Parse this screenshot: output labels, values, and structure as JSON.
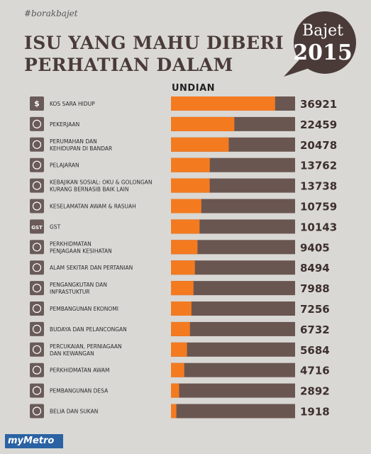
{
  "header": {
    "hashtag": "#borakbajet",
    "title_line1": "ISU YANG MAHU DIBERI",
    "title_line2": "PERHATIAN DALAM",
    "bubble_word": "Bajet",
    "bubble_year": "2015"
  },
  "colors": {
    "accent": "#f47a20",
    "bar_track": "#6a5651",
    "icon_bg": "#6a5b58",
    "title": "#4a3b38",
    "background": "#d9d8d5",
    "logo": "#2a62a3"
  },
  "chart_data": {
    "type": "bar",
    "orientation": "horizontal",
    "title": "ISU YANG MAHU DIBERI PERHATIAN DALAM Bajet 2015",
    "value_label": "UNDIAN",
    "xlim": [
      0,
      44000
    ],
    "categories": [
      "KOS SARA HIDUP",
      "PEKERJAAN",
      "PERUMAHAN DAN KEHIDUPAN DI BANDAR",
      "PELAJARAN",
      "KEBAJIKAN SOSIAL: OKU & GOLONGAN KURANG BERNASIB BAIK LAIN",
      "KESELAMATAN AWAM & RASUAH",
      "GST",
      "PERKHIDMATAN PENJAGAAN KESIHATAN",
      "ALAM SEKITAR DAN PERTANIAN",
      "PENGANGKUTAN DAN INFRASTUKTUR",
      "PEMBANGUNAN EKONOMI",
      "BUDAYA DAN PELANCONGAN",
      "PERCUKAIAN, PERNIAGAAN DAN KEWANGAN",
      "PERKHIDMATAN AWAM",
      "PEMBANGUNAN DESA",
      "BELIA DAN SUKAN"
    ],
    "label_lines": [
      [
        "KOS SARA HIDUP"
      ],
      [
        "PEKERJAAN"
      ],
      [
        "PERUMAHAN DAN",
        "KEHIDUPAN DI BANDAR"
      ],
      [
        "PELAJARAN"
      ],
      [
        "KEBAJIKAN SOSIAL: OKU & GOLONGAN",
        "KURANG BERNASIB BAIK LAIN"
      ],
      [
        "KESELAMATAN AWAM & RASUAH"
      ],
      [
        "GST"
      ],
      [
        "PERKHIDMATAN",
        "PENJAGAAN KESIHATAN"
      ],
      [
        "ALAM SEKITAR DAN PERTANIAN"
      ],
      [
        "PENGANGKUTAN DAN",
        "INFRASTUKTUR"
      ],
      [
        "PEMBANGUNAN EKONOMI"
      ],
      [
        "BUDAYA DAN PELANCONGAN"
      ],
      [
        "PERCUKAIAN, PERNIAGAAN",
        "DAN KEWANGAN"
      ],
      [
        "PERKHIDMATAN AWAM"
      ],
      [
        "PEMBANGUNAN DESA"
      ],
      [
        "BELIA DAN SUKAN"
      ]
    ],
    "values": [
      36921,
      22459,
      20478,
      13762,
      13738,
      10759,
      10143,
      9405,
      8494,
      7988,
      7256,
      6732,
      5684,
      4716,
      2892,
      1918
    ],
    "icons": [
      "money-bag-icon",
      "briefcase-icon",
      "city-building-icon",
      "graduation-cap-icon",
      "wheelchair-icon",
      "handcuffs-icon",
      "gst-icon",
      "heart-plus-icon",
      "leaf-icon",
      "bridge-icon",
      "growth-chart-icon",
      "airplane-icon",
      "coins-icon",
      "handshake-icon",
      "rural-house-icon",
      "ball-icon"
    ],
    "icon_glyphs": [
      "$",
      "",
      "",
      "",
      "",
      "",
      "GST",
      "",
      "",
      "",
      "",
      "",
      "",
      "",
      "",
      ""
    ]
  },
  "footer": {
    "logo": "myMetro"
  }
}
